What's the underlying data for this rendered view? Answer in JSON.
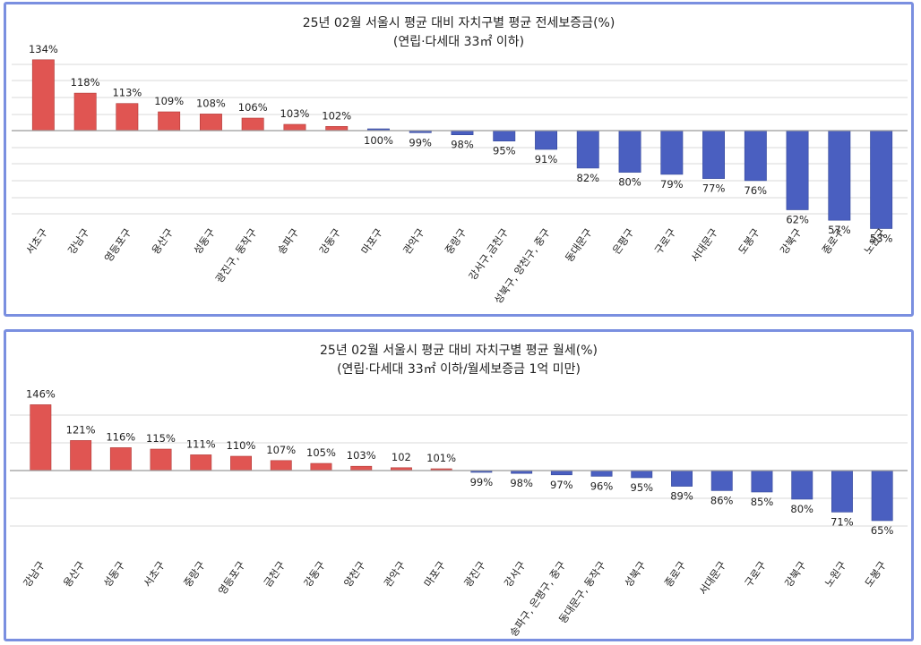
{
  "charts": [
    {
      "title": "25년 02월 서울시 평균 대비 자치구별 평균 전세보증금(%)",
      "subtitle": "(연립·다세대 33㎡ 이하)",
      "chart_data": {
        "type": "bar",
        "categories": [
          "서초구",
          "강남구",
          "영등포구",
          "용산구",
          "성동구",
          "광진구, 동작구",
          "송파구",
          "강동구",
          "마포구",
          "관악구",
          "중랑구",
          "강서구,금천구",
          "성북구, 양천구, 중구",
          "동대문구",
          "은평구",
          "구로구",
          "서대문구",
          "도봉구",
          "강북구",
          "종로구",
          "노원구"
        ],
        "values": [
          134,
          118,
          113,
          109,
          108,
          106,
          103,
          102,
          100,
          99,
          98,
          95,
          91,
          82,
          80,
          79,
          77,
          76,
          62,
          57,
          53
        ],
        "labels": [
          "134%",
          "118%",
          "113%",
          "109%",
          "108%",
          "106%",
          "103%",
          "102%",
          "100%",
          "99%",
          "98%",
          "95%",
          "91%",
          "82%",
          "80%",
          "79%",
          "77%",
          "76%",
          "62%",
          "57%",
          "53%"
        ],
        "baseline": 100,
        "above_color": "#e05552",
        "below_color": "#4a5fc0"
      }
    },
    {
      "title": "25년 02월 서울시 평균 대비 자치구별 평균 월세(%)",
      "subtitle": "(연립·다세대 33㎡ 이하/월세보증금 1억 미만)",
      "chart_data": {
        "type": "bar",
        "categories": [
          "강남구",
          "용산구",
          "성동구",
          "서초구",
          "중랑구",
          "영등포구",
          "금천구",
          "강동구",
          "양천구",
          "관악구",
          "마포구",
          "광진구",
          "강서구",
          "송파구, 은평구, 중구",
          "동대문구, 동작구",
          "성북구",
          "종로구",
          "서대문구",
          "구로구",
          "강북구",
          "노원구",
          "도봉구"
        ],
        "values": [
          146,
          121,
          116,
          115,
          111,
          110,
          107,
          105,
          103,
          102,
          101,
          99,
          98,
          97,
          96,
          95,
          89,
          86,
          85,
          80,
          71,
          65
        ],
        "labels": [
          "146%",
          "121%",
          "116%",
          "115%",
          "111%",
          "110%",
          "107%",
          "105%",
          "103%",
          "102",
          "101%",
          "99%",
          "98%",
          "97%",
          "96%",
          "95%",
          "89%",
          "86%",
          "85%",
          "80%",
          "71%",
          "65%"
        ],
        "baseline": 100,
        "above_color": "#e05552",
        "below_color": "#4a5fc0"
      }
    }
  ]
}
